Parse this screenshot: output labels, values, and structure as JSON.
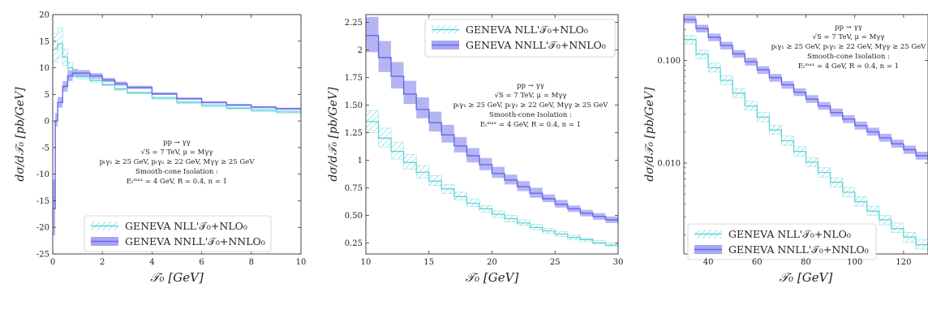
{
  "colors": {
    "nll": "#5fd3d6",
    "nnll": "#6666ee",
    "nnll_band": "#a8a8f2",
    "axes": "#333333"
  },
  "annotation_lines": [
    "pp → γγ",
    "√S = 7 TeV,  μ = Mγγ",
    "pₜγ₁ ≥ 25 GeV,  pₜγ₂ ≥ 22 GeV,  Mγγ ≥ 25 GeV",
    "Smooth-cone Isolation :",
    "Eₜᵐᵃˣ = 4 GeV,  R = 0.4,  n = 1"
  ],
  "chart_data": [
    {
      "type": "line",
      "xlabel": "𝒯₀   [GeV]",
      "ylabel": "dσ/d𝒯₀   [pb/GeV]",
      "xlim": [
        0,
        10
      ],
      "ylim": [
        -25,
        20
      ],
      "yscale": "linear",
      "xticks": [
        0,
        2,
        4,
        6,
        8,
        10
      ],
      "yticks": [
        -25,
        -20,
        -15,
        -10,
        -5,
        0,
        5,
        10,
        15,
        20
      ],
      "legend": "bottom-center",
      "annotation_position": "center",
      "series": [
        {
          "name": "GENEVA NLL'𝒯₀+NLO₀",
          "style": "hatched",
          "x": [
            0.0,
            0.2,
            0.4,
            0.6,
            0.8,
            1.0,
            1.5,
            2.0,
            2.5,
            3.0,
            4.0,
            5.0,
            6.0,
            7.0,
            8.0,
            9.0,
            10.0
          ],
          "y": [
            13.5,
            14.5,
            12.0,
            10.0,
            8.8,
            8.3,
            7.6,
            6.8,
            6.0,
            5.3,
            4.3,
            3.5,
            2.9,
            2.4,
            2.0,
            1.7,
            1.4
          ],
          "y_low": [
            11.0,
            12.0,
            10.5,
            9.0,
            8.2,
            7.9,
            7.3,
            6.6,
            5.8,
            5.1,
            4.1,
            3.3,
            2.7,
            2.2,
            1.8,
            1.5,
            1.2
          ],
          "y_high": [
            16.5,
            17.5,
            13.5,
            11.0,
            9.4,
            8.7,
            7.9,
            7.0,
            6.2,
            5.5,
            4.5,
            3.7,
            3.1,
            2.6,
            2.2,
            1.9,
            1.6
          ]
        },
        {
          "name": "GENEVA NNLL'𝒯₀+NNLO₀",
          "style": "band",
          "x": [
            0.0,
            0.1,
            0.2,
            0.4,
            0.6,
            0.8,
            1.0,
            1.5,
            2.0,
            2.5,
            3.0,
            4.0,
            5.0,
            6.0,
            7.0,
            8.0,
            9.0,
            10.0
          ],
          "y": [
            -16.5,
            0.0,
            3.5,
            6.5,
            8.5,
            9.0,
            9.0,
            8.5,
            7.7,
            7.0,
            6.3,
            5.1,
            4.2,
            3.5,
            3.0,
            2.6,
            2.3,
            2.0
          ],
          "y_low": [
            -21.5,
            -1.0,
            2.5,
            5.5,
            7.5,
            8.3,
            8.4,
            8.0,
            7.3,
            6.6,
            6.0,
            4.9,
            4.0,
            3.3,
            2.8,
            2.4,
            2.1,
            1.8
          ],
          "y_high": [
            -11.0,
            1.5,
            4.5,
            7.5,
            9.5,
            9.8,
            9.6,
            9.0,
            8.1,
            7.4,
            6.6,
            5.4,
            4.4,
            3.7,
            3.2,
            2.8,
            2.5,
            2.2
          ]
        }
      ]
    },
    {
      "type": "line",
      "xlabel": "𝒯₀   [GeV]",
      "ylabel": "dσ/d𝒯₀   [pb/GeV]",
      "xlim": [
        10,
        30
      ],
      "ylim": [
        0.15,
        2.32
      ],
      "yscale": "linear",
      "xticks": [
        10,
        15,
        20,
        25,
        30
      ],
      "yticks": [
        0.25,
        0.5,
        0.75,
        1.0,
        1.25,
        1.5,
        1.75,
        2.0,
        2.25
      ],
      "legend": "top-right",
      "annotation_position": "center-right",
      "series": [
        {
          "name": "GENEVA NLL'𝒯₀+NLO₀",
          "style": "hatched",
          "x": [
            10,
            11,
            12,
            13,
            14,
            15,
            16,
            17,
            18,
            19,
            20,
            21,
            22,
            23,
            24,
            25,
            26,
            27,
            28,
            29,
            30
          ],
          "y": [
            1.35,
            1.2,
            1.08,
            0.98,
            0.89,
            0.81,
            0.74,
            0.67,
            0.61,
            0.56,
            0.51,
            0.47,
            0.43,
            0.39,
            0.36,
            0.33,
            0.3,
            0.28,
            0.25,
            0.23,
            0.21
          ],
          "y_low": [
            1.25,
            1.12,
            1.01,
            0.92,
            0.84,
            0.77,
            0.7,
            0.64,
            0.58,
            0.53,
            0.48,
            0.44,
            0.41,
            0.37,
            0.34,
            0.31,
            0.28,
            0.26,
            0.24,
            0.22,
            0.19
          ],
          "y_high": [
            1.45,
            1.29,
            1.16,
            1.05,
            0.95,
            0.86,
            0.78,
            0.71,
            0.65,
            0.59,
            0.54,
            0.5,
            0.46,
            0.42,
            0.38,
            0.35,
            0.32,
            0.29,
            0.27,
            0.25,
            0.23
          ]
        },
        {
          "name": "GENEVA NNLL'𝒯₀+NNLO₀",
          "style": "band",
          "x": [
            10,
            11,
            12,
            13,
            14,
            15,
            16,
            17,
            18,
            19,
            20,
            21,
            22,
            23,
            24,
            25,
            26,
            27,
            28,
            29,
            30
          ],
          "y": [
            2.13,
            1.93,
            1.76,
            1.6,
            1.46,
            1.34,
            1.23,
            1.13,
            1.04,
            0.96,
            0.88,
            0.82,
            0.76,
            0.7,
            0.65,
            0.6,
            0.56,
            0.52,
            0.49,
            0.46,
            0.43
          ],
          "y_low": [
            1.98,
            1.8,
            1.65,
            1.51,
            1.38,
            1.26,
            1.16,
            1.07,
            0.98,
            0.91,
            0.84,
            0.78,
            0.72,
            0.66,
            0.62,
            0.57,
            0.53,
            0.49,
            0.46,
            0.43,
            0.4
          ],
          "y_high": [
            2.3,
            2.08,
            1.89,
            1.72,
            1.57,
            1.44,
            1.32,
            1.21,
            1.11,
            1.02,
            0.94,
            0.87,
            0.81,
            0.75,
            0.69,
            0.64,
            0.59,
            0.55,
            0.52,
            0.49,
            0.46
          ]
        }
      ]
    },
    {
      "type": "line",
      "xlabel": "𝒯₀   [GeV]",
      "ylabel": "dσ/d𝒯₀   [pb/GeV]",
      "xlim": [
        30,
        130
      ],
      "ylim": [
        0.0013,
        0.28
      ],
      "yscale": "log",
      "xticks": [
        40,
        60,
        80,
        100,
        120
      ],
      "yticks": [
        0.01,
        0.1
      ],
      "ytick_labels": [
        "0.010",
        "0.100"
      ],
      "legend": "bottom-left",
      "annotation_position": "top-right",
      "series": [
        {
          "name": "GENEVA NLL'𝒯₀+NLO₀",
          "style": "hatched",
          "x": [
            30,
            35,
            40,
            45,
            50,
            55,
            60,
            65,
            70,
            75,
            80,
            85,
            90,
            95,
            100,
            105,
            110,
            115,
            120,
            125,
            130
          ],
          "y": [
            0.16,
            0.115,
            0.085,
            0.064,
            0.048,
            0.036,
            0.028,
            0.021,
            0.0165,
            0.013,
            0.0102,
            0.0081,
            0.0065,
            0.0052,
            0.0042,
            0.0034,
            0.0028,
            0.0023,
            0.0019,
            0.0016,
            0.0014
          ],
          "y_low": [
            0.145,
            0.104,
            0.077,
            0.058,
            0.0435,
            0.0326,
            0.0253,
            0.019,
            0.0149,
            0.0117,
            0.0092,
            0.0073,
            0.0058,
            0.0047,
            0.0038,
            0.0031,
            0.0025,
            0.0021,
            0.0017,
            0.00145,
            0.00126
          ],
          "y_high": [
            0.175,
            0.126,
            0.094,
            0.071,
            0.053,
            0.04,
            0.031,
            0.0233,
            0.0183,
            0.0144,
            0.0113,
            0.009,
            0.0072,
            0.0058,
            0.0047,
            0.0038,
            0.0031,
            0.0026,
            0.0021,
            0.0018,
            0.0015
          ]
        },
        {
          "name": "GENEVA NNLL'𝒯₀+NNLO₀",
          "style": "band",
          "x": [
            30,
            35,
            40,
            45,
            50,
            55,
            60,
            65,
            70,
            75,
            80,
            85,
            90,
            95,
            100,
            105,
            110,
            115,
            120,
            125,
            130
          ],
          "y": [
            0.25,
            0.205,
            0.168,
            0.14,
            0.116,
            0.097,
            0.081,
            0.068,
            0.058,
            0.049,
            0.042,
            0.036,
            0.031,
            0.0268,
            0.0232,
            0.0202,
            0.0176,
            0.0154,
            0.0135,
            0.0118,
            0.0104
          ],
          "y_low": [
            0.23,
            0.188,
            0.154,
            0.128,
            0.106,
            0.089,
            0.074,
            0.062,
            0.053,
            0.045,
            0.0385,
            0.033,
            0.0284,
            0.0245,
            0.0212,
            0.0185,
            0.0161,
            0.0141,
            0.0123,
            0.0108,
            0.0095
          ],
          "y_high": [
            0.272,
            0.223,
            0.183,
            0.152,
            0.126,
            0.106,
            0.088,
            0.074,
            0.063,
            0.0535,
            0.046,
            0.0394,
            0.034,
            0.0293,
            0.0254,
            0.0221,
            0.0193,
            0.0169,
            0.0148,
            0.0129,
            0.0114
          ]
        }
      ]
    }
  ]
}
